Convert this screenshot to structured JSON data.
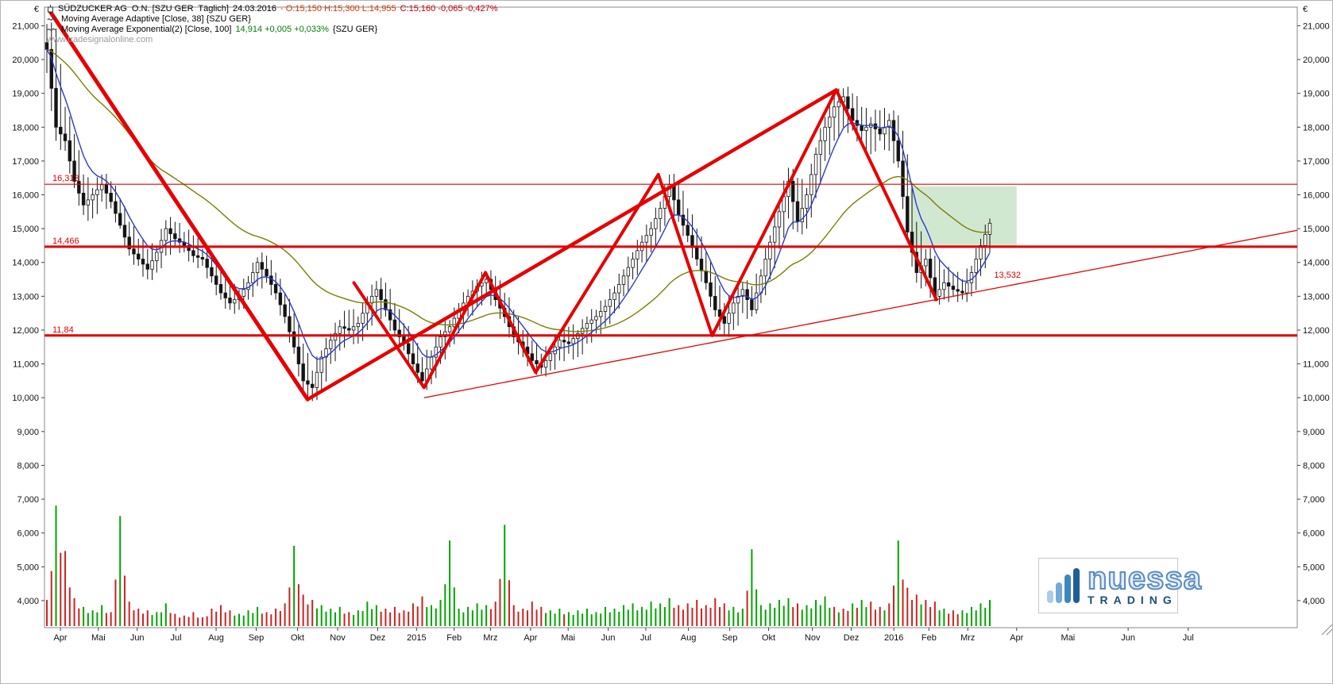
{
  "legend": {
    "line1": {
      "title": "SÜDZUCKER AG  O.N. [SZU GER  Täglich]",
      "date": "24.03.2016",
      "ohl": "- O:15,150 H:15,300 L:14,955",
      "close": "C:15,160 -0,065 -0,427%"
    },
    "line2": {
      "text": "Moving Average Adaptive [Close, 38] {SZU GER}"
    },
    "line3": {
      "prefix": "Moving Average Exponential(2) [Close, 100]",
      "value": "14,914 +0,005 +0,033%",
      "suffix": "{SZU GER}"
    },
    "watermark": "www.tradesignalonline.com"
  },
  "logo": {
    "name": "nuessa",
    "subtitle": "TRADING"
  },
  "chart_data": {
    "type": "candlestick",
    "symbol": "SÜDZUCKER AG O.N.",
    "ticker": "SZU GER",
    "timeframe": "Täglich",
    "date": "24.03.2016",
    "last_quote": {
      "open": 15.15,
      "high": 15.3,
      "low": 14.955,
      "close": 15.16,
      "change": -0.065,
      "change_pct": "-0,427%"
    },
    "currency": "€",
    "y_axis": {
      "ticks": [
        {
          "value": 4,
          "label": "4,000"
        },
        {
          "value": 5,
          "label": "5,000"
        },
        {
          "value": 6,
          "label": "6,000"
        },
        {
          "value": 7,
          "label": "7,000"
        },
        {
          "value": 8,
          "label": "8,000"
        },
        {
          "value": 9,
          "label": "9,000"
        },
        {
          "value": 10,
          "label": "10,000"
        },
        {
          "value": 11,
          "label": "11,000"
        },
        {
          "value": 12,
          "label": "12,000"
        },
        {
          "value": 13,
          "label": "13,000"
        },
        {
          "value": 14,
          "label": "14,000"
        },
        {
          "value": 15,
          "label": "15,000"
        },
        {
          "value": 16,
          "label": "16,000"
        },
        {
          "value": 17,
          "label": "17,000"
        },
        {
          "value": 18,
          "label": "18,000"
        },
        {
          "value": 19,
          "label": "19,000"
        },
        {
          "value": 20,
          "label": "20,000"
        },
        {
          "value": 21,
          "label": "21,000"
        }
      ]
    },
    "x_axis": {
      "months": [
        {
          "label": "Apr",
          "t": 0.0127
        },
        {
          "label": "Mai",
          "t": 0.043
        },
        {
          "label": "Jun",
          "t": 0.074
        },
        {
          "label": "Jul",
          "t": 0.105
        },
        {
          "label": "Aug",
          "t": 0.137
        },
        {
          "label": "Sep",
          "t": 0.169
        },
        {
          "label": "Okt",
          "t": 0.202
        },
        {
          "label": "Nov",
          "t": 0.234
        },
        {
          "label": "Dez",
          "t": 0.266
        },
        {
          "label": "2015",
          "t": 0.297
        },
        {
          "label": "Feb",
          "t": 0.327
        },
        {
          "label": "Mrz",
          "t": 0.356
        },
        {
          "label": "Apr",
          "t": 0.388
        },
        {
          "label": "Mai",
          "t": 0.418
        },
        {
          "label": "Jun",
          "t": 0.45
        },
        {
          "label": "Jul",
          "t": 0.48
        },
        {
          "label": "Aug",
          "t": 0.514
        },
        {
          "label": "Sep",
          "t": 0.547
        },
        {
          "label": "Okt",
          "t": 0.578
        },
        {
          "label": "Nov",
          "t": 0.613
        },
        {
          "label": "Dez",
          "t": 0.644
        },
        {
          "label": "2016",
          "t": 0.678
        },
        {
          "label": "Feb",
          "t": 0.706
        },
        {
          "label": "Mrz",
          "t": 0.737
        },
        {
          "label": "Apr",
          "t": 0.776
        },
        {
          "label": "Mai",
          "t": 0.817
        },
        {
          "label": "Jun",
          "t": 0.865
        },
        {
          "label": "Jul",
          "t": 0.913
        }
      ]
    },
    "data_fraction": 0.7546,
    "open_first": 20.5,
    "candles": [
      [
        21.05,
        19.6,
        20.3
      ],
      [
        20.9,
        17.6,
        18.0
      ],
      [
        18.6,
        17.3,
        17.6
      ],
      [
        17.8,
        16.2,
        16.4
      ],
      [
        16.6,
        15.4,
        15.7
      ],
      [
        16.2,
        15.3,
        16.0
      ],
      [
        16.6,
        15.8,
        16.3
      ],
      [
        16.4,
        15.6,
        15.8
      ],
      [
        15.9,
        15.0,
        15.1
      ],
      [
        15.2,
        14.2,
        14.4
      ],
      [
        14.7,
        13.9,
        14.1
      ],
      [
        14.4,
        13.5,
        13.8
      ],
      [
        14.5,
        13.7,
        14.3
      ],
      [
        15.25,
        14.2,
        15.0
      ],
      [
        15.2,
        14.5,
        14.7
      ],
      [
        14.9,
        14.3,
        14.5
      ],
      [
        14.8,
        14.0,
        14.2
      ],
      [
        14.4,
        13.9,
        14.1
      ],
      [
        14.2,
        13.4,
        13.6
      ],
      [
        13.8,
        12.9,
        13.1
      ],
      [
        13.3,
        12.6,
        12.8
      ],
      [
        13.2,
        12.6,
        13.0
      ],
      [
        13.6,
        12.9,
        13.4
      ],
      [
        14.15,
        13.3,
        14.0
      ],
      [
        14.2,
        13.4,
        13.6
      ],
      [
        13.7,
        12.9,
        13.1
      ],
      [
        13.1,
        12.2,
        12.4
      ],
      [
        12.5,
        11.3,
        11.5
      ],
      [
        11.6,
        10.2,
        10.5
      ],
      [
        10.8,
        9.9,
        10.3
      ],
      [
        11.4,
        10.2,
        11.2
      ],
      [
        11.9,
        11.0,
        11.7
      ],
      [
        12.3,
        11.4,
        12.1
      ],
      [
        12.6,
        11.8,
        12.0
      ],
      [
        12.4,
        11.6,
        12.2
      ],
      [
        13.0,
        12.0,
        12.8
      ],
      [
        13.45,
        12.5,
        13.2
      ],
      [
        13.4,
        12.4,
        12.6
      ],
      [
        12.8,
        11.8,
        12.0
      ],
      [
        12.2,
        11.4,
        11.6
      ],
      [
        11.8,
        10.8,
        11.0
      ],
      [
        11.2,
        10.3,
        10.5
      ],
      [
        11.4,
        10.4,
        11.2
      ],
      [
        12.0,
        11.0,
        11.8
      ],
      [
        12.3,
        11.5,
        12.1
      ],
      [
        12.8,
        11.9,
        12.6
      ],
      [
        13.2,
        12.4,
        13.0
      ],
      [
        13.5,
        12.7,
        13.3
      ],
      [
        13.7,
        13.0,
        13.5
      ],
      [
        13.6,
        12.7,
        12.9
      ],
      [
        13.1,
        12.2,
        12.4
      ],
      [
        12.6,
        11.6,
        11.8
      ],
      [
        12.0,
        11.2,
        11.5
      ],
      [
        11.7,
        10.9,
        11.1
      ],
      [
        11.3,
        10.7,
        10.9
      ],
      [
        11.5,
        10.8,
        11.3
      ],
      [
        11.9,
        11.1,
        11.7
      ],
      [
        12.1,
        11.3,
        11.6
      ],
      [
        12.0,
        11.2,
        11.9
      ],
      [
        12.4,
        11.6,
        12.2
      ],
      [
        12.6,
        11.9,
        12.4
      ],
      [
        12.9,
        12.1,
        12.7
      ],
      [
        13.3,
        12.5,
        13.1
      ],
      [
        13.8,
        13.0,
        13.6
      ],
      [
        14.3,
        13.5,
        14.1
      ],
      [
        14.8,
        14.0,
        14.6
      ],
      [
        15.2,
        14.3,
        15.0
      ],
      [
        15.8,
        14.9,
        15.6
      ],
      [
        16.6,
        15.5,
        16.3
      ],
      [
        16.4,
        15.2,
        15.4
      ],
      [
        15.6,
        14.6,
        14.8
      ],
      [
        15.0,
        13.9,
        14.1
      ],
      [
        14.3,
        13.2,
        13.4
      ],
      [
        13.6,
        12.4,
        12.6
      ],
      [
        12.8,
        11.84,
        12.2
      ],
      [
        13.0,
        12.0,
        12.8
      ],
      [
        13.4,
        12.5,
        13.2
      ],
      [
        13.3,
        12.4,
        12.6
      ],
      [
        13.8,
        12.8,
        13.6
      ],
      [
        14.8,
        13.5,
        14.6
      ],
      [
        15.8,
        14.4,
        15.5
      ],
      [
        16.8,
        15.3,
        16.4
      ],
      [
        16.5,
        14.9,
        15.2
      ],
      [
        16.2,
        15.0,
        16.0
      ],
      [
        17.4,
        15.9,
        17.2
      ],
      [
        18.3,
        17.0,
        18.0
      ],
      [
        18.9,
        17.6,
        18.6
      ],
      [
        19.15,
        18.0,
        18.9
      ],
      [
        19.0,
        17.9,
        18.2
      ],
      [
        18.6,
        17.5,
        17.9
      ],
      [
        18.3,
        17.2,
        18.1
      ],
      [
        18.5,
        17.6,
        17.8
      ],
      [
        18.4,
        17.3,
        18.2
      ],
      [
        18.35,
        16.8,
        17.0
      ],
      [
        17.2,
        14.6,
        14.9
      ],
      [
        15.2,
        13.4,
        13.7
      ],
      [
        14.4,
        13.3,
        14.1
      ],
      [
        14.2,
        12.85,
        13.0
      ],
      [
        13.8,
        12.9,
        13.4
      ],
      [
        13.7,
        13.0,
        13.2
      ],
      [
        13.5,
        12.9,
        13.1
      ],
      [
        13.9,
        13.0,
        13.7
      ],
      [
        14.7,
        13.6,
        14.5
      ],
      [
        15.3,
        14.3,
        15.16
      ]
    ],
    "volumes": [
      -1.5,
      6.9,
      -4.3,
      -1.6,
      1.1,
      0.9,
      1.2,
      -0.8,
      6.3,
      -1.4,
      -1.0,
      -0.9,
      0.8,
      1.3,
      -0.7,
      -0.6,
      -0.8,
      -0.5,
      -1.0,
      -1.2,
      -0.9,
      0.7,
      0.9,
      1.1,
      -0.8,
      -1.0,
      -1.3,
      4.6,
      -1.8,
      -1.5,
      1.2,
      1.0,
      1.1,
      -0.8,
      0.9,
      1.4,
      1.2,
      -1.0,
      -1.1,
      -0.9,
      -1.3,
      -1.7,
      1.2,
      1.5,
      4.9,
      1.0,
      1.1,
      1.3,
      1.2,
      -1.4,
      5.8,
      -1.2,
      -1.0,
      -1.4,
      -1.1,
      0.9,
      1.0,
      0.8,
      0.9,
      1.0,
      0.8,
      1.1,
      1.0,
      1.2,
      1.3,
      1.1,
      1.4,
      1.3,
      1.6,
      -1.2,
      -1.3,
      -1.5,
      -1.2,
      -1.6,
      -1.3,
      1.1,
      1.0,
      4.4,
      1.2,
      1.3,
      1.5,
      1.6,
      -1.3,
      1.2,
      1.5,
      1.7,
      -1.1,
      -1.0,
      1.3,
      1.5,
      -1.4,
      -1.1,
      -1.3,
      4.9,
      -2.2,
      -1.8,
      -1.5,
      -1.4,
      1.0,
      -0.9,
      0.9,
      1.1,
      1.3,
      1.5
    ],
    "moving_averages": [
      {
        "name": "Moving Average Adaptive [Close, 38]",
        "color": "#2a3bd0",
        "k": 0.22
      },
      {
        "name": "Moving Average Exponential(2) [Close, 100]",
        "color": "#7d7d00",
        "k": 0.048,
        "last_value": 14.914
      }
    ],
    "levels": [
      {
        "label": "16,313",
        "value": 16.313,
        "width": 1.2
      },
      {
        "label": "14,466",
        "value": 14.466,
        "width": 3
      },
      {
        "label": "11,84",
        "value": 11.84,
        "width": 3
      }
    ],
    "trendline": {
      "from": {
        "t": 0.303,
        "p": 10.0
      },
      "to": {
        "t": 1.0,
        "p": 14.95
      },
      "label": "13,532",
      "label_at": {
        "t": 0.758,
        "p": 13.55
      }
    },
    "zigzags": [
      {
        "width": 5,
        "points": [
          [
            0.004,
            21.45
          ],
          [
            0.21,
            9.95
          ]
        ]
      },
      {
        "width": 4.5,
        "points": [
          [
            0.21,
            9.95
          ],
          [
            0.632,
            19.1
          ]
        ]
      },
      {
        "width": 4,
        "points": [
          [
            0.247,
            13.4
          ],
          [
            0.303,
            10.3
          ],
          [
            0.352,
            13.7
          ],
          [
            0.392,
            10.75
          ],
          [
            0.49,
            16.6
          ],
          [
            0.533,
            11.84
          ],
          [
            0.632,
            19.1
          ],
          [
            0.712,
            12.9
          ]
        ]
      }
    ],
    "target_zone": {
      "t0": 0.691,
      "t1": 0.776,
      "p0": 14.466,
      "p1": 16.25,
      "color": "rgba(120,190,120,0.35)"
    },
    "volume_colors": {
      "up": "#00a400",
      "down": "#cc2222"
    },
    "candle_color": "#141414"
  }
}
